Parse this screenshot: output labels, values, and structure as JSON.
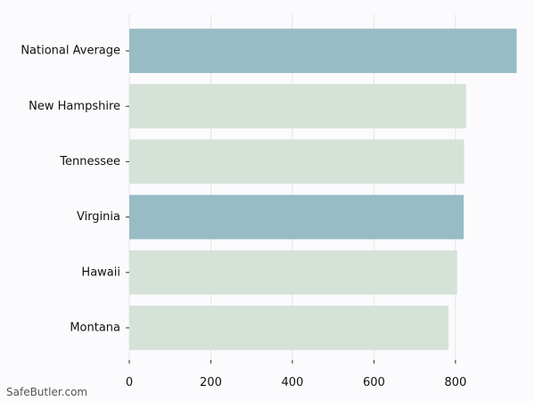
{
  "chart_data": {
    "type": "bar",
    "orientation": "horizontal",
    "categories": [
      "National Average",
      "New Hampshire",
      "Tennessee",
      "Virginia",
      "Hawaii",
      "Montana"
    ],
    "values": [
      950,
      826,
      821,
      820,
      804,
      783
    ],
    "highlight": [
      true,
      false,
      false,
      true,
      false,
      false
    ],
    "xlim": [
      0,
      960
    ],
    "xticks": [
      0,
      200,
      400,
      600,
      800
    ],
    "grid": "vertical",
    "title": "",
    "xlabel": "",
    "ylabel": "",
    "colors": {
      "highlight": "#97bcc5",
      "default": "#d5e2d8",
      "grid": "#e6e6e6",
      "background": "#fbfbfd"
    }
  },
  "watermark": "SafeButler.com"
}
